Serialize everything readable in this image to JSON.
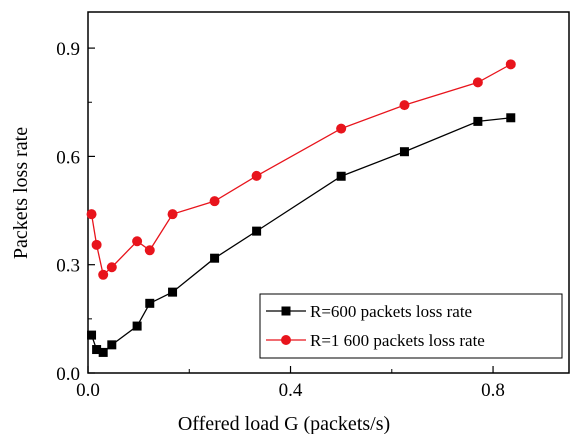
{
  "chart_data": {
    "type": "line",
    "xlabel": "Offered load G (packets/s)",
    "ylabel": "Packets loss rate",
    "xlim": [
      0.0,
      0.95
    ],
    "ylim": [
      0.0,
      1.0
    ],
    "x_ticks": [
      0.0,
      0.4,
      0.8
    ],
    "x_tick_labels": [
      "0.0",
      "0.4",
      "0.8"
    ],
    "y_ticks": [
      0.0,
      0.3,
      0.6,
      0.9
    ],
    "y_tick_labels": [
      "0.0",
      "0.3",
      "0.6",
      "0.9"
    ],
    "grid": false,
    "legend_position": "bottom-right",
    "series": [
      {
        "name": "R=600 packets loss rate",
        "color": "#000000",
        "marker": "square",
        "x": [
          0.007,
          0.017,
          0.03,
          0.047,
          0.097,
          0.122,
          0.167,
          0.25,
          0.333,
          0.5,
          0.625,
          0.77,
          0.835
        ],
        "y": [
          0.105,
          0.065,
          0.057,
          0.078,
          0.13,
          0.193,
          0.224,
          0.318,
          0.393,
          0.545,
          0.613,
          0.697,
          0.707
        ]
      },
      {
        "name": "R=1 600 packets loss rate",
        "color": "#e8141c",
        "marker": "circle",
        "x": [
          0.007,
          0.017,
          0.03,
          0.047,
          0.097,
          0.122,
          0.167,
          0.25,
          0.333,
          0.5,
          0.625,
          0.77,
          0.835
        ],
        "y": [
          0.44,
          0.355,
          0.272,
          0.293,
          0.365,
          0.34,
          0.44,
          0.476,
          0.546,
          0.677,
          0.742,
          0.805,
          0.855
        ]
      }
    ]
  }
}
